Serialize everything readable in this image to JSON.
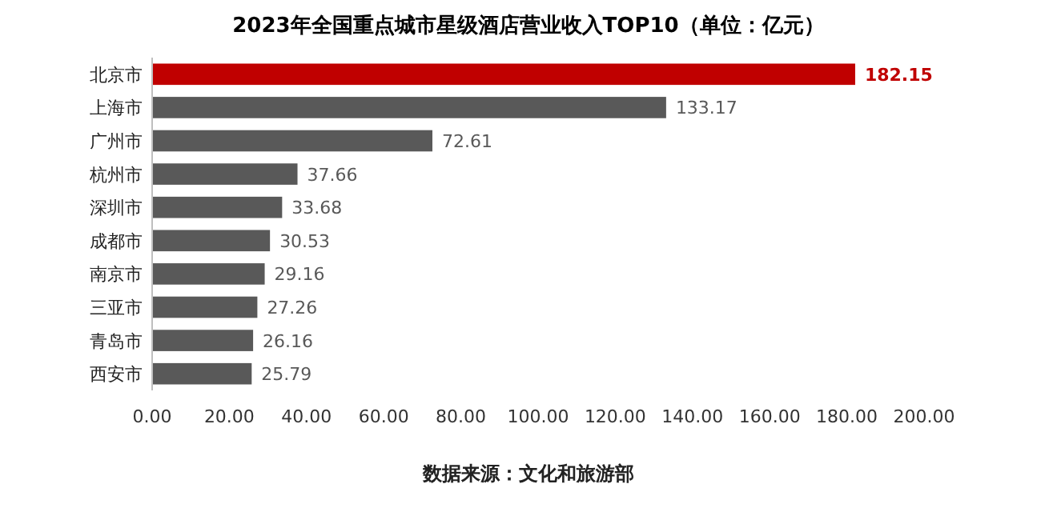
{
  "chart_data": {
    "type": "bar",
    "orientation": "horizontal",
    "title": "2023年全国重点城市星级酒店营业收入TOP10（单位：亿元）",
    "categories": [
      "北京市",
      "上海市",
      "广州市",
      "杭州市",
      "深圳市",
      "成都市",
      "南京市",
      "三亚市",
      "青岛市",
      "西安市"
    ],
    "values": [
      182.15,
      133.17,
      72.61,
      37.66,
      33.68,
      30.53,
      29.16,
      27.26,
      26.16,
      25.79
    ],
    "colors": [
      "#c00000",
      "#595959",
      "#595959",
      "#595959",
      "#595959",
      "#595959",
      "#595959",
      "#595959",
      "#595959",
      "#595959"
    ],
    "xlim": [
      0,
      200
    ],
    "xticks": [
      {
        "value": 0,
        "label": "0.00"
      },
      {
        "value": 20,
        "label": "20.00"
      },
      {
        "value": 40,
        "label": "40.00"
      },
      {
        "value": 60,
        "label": "60.00"
      },
      {
        "value": 80,
        "label": "80.00"
      },
      {
        "value": 100,
        "label": "100.00"
      },
      {
        "value": 120,
        "label": "120.00"
      },
      {
        "value": 140,
        "label": "140.00"
      },
      {
        "value": 160,
        "label": "160.00"
      },
      {
        "value": 180,
        "label": "180.00"
      },
      {
        "value": 200,
        "label": "200.00"
      }
    ],
    "data_labels": true,
    "grid": false,
    "annotations": [
      "数据来源：文化和旅游部"
    ]
  }
}
